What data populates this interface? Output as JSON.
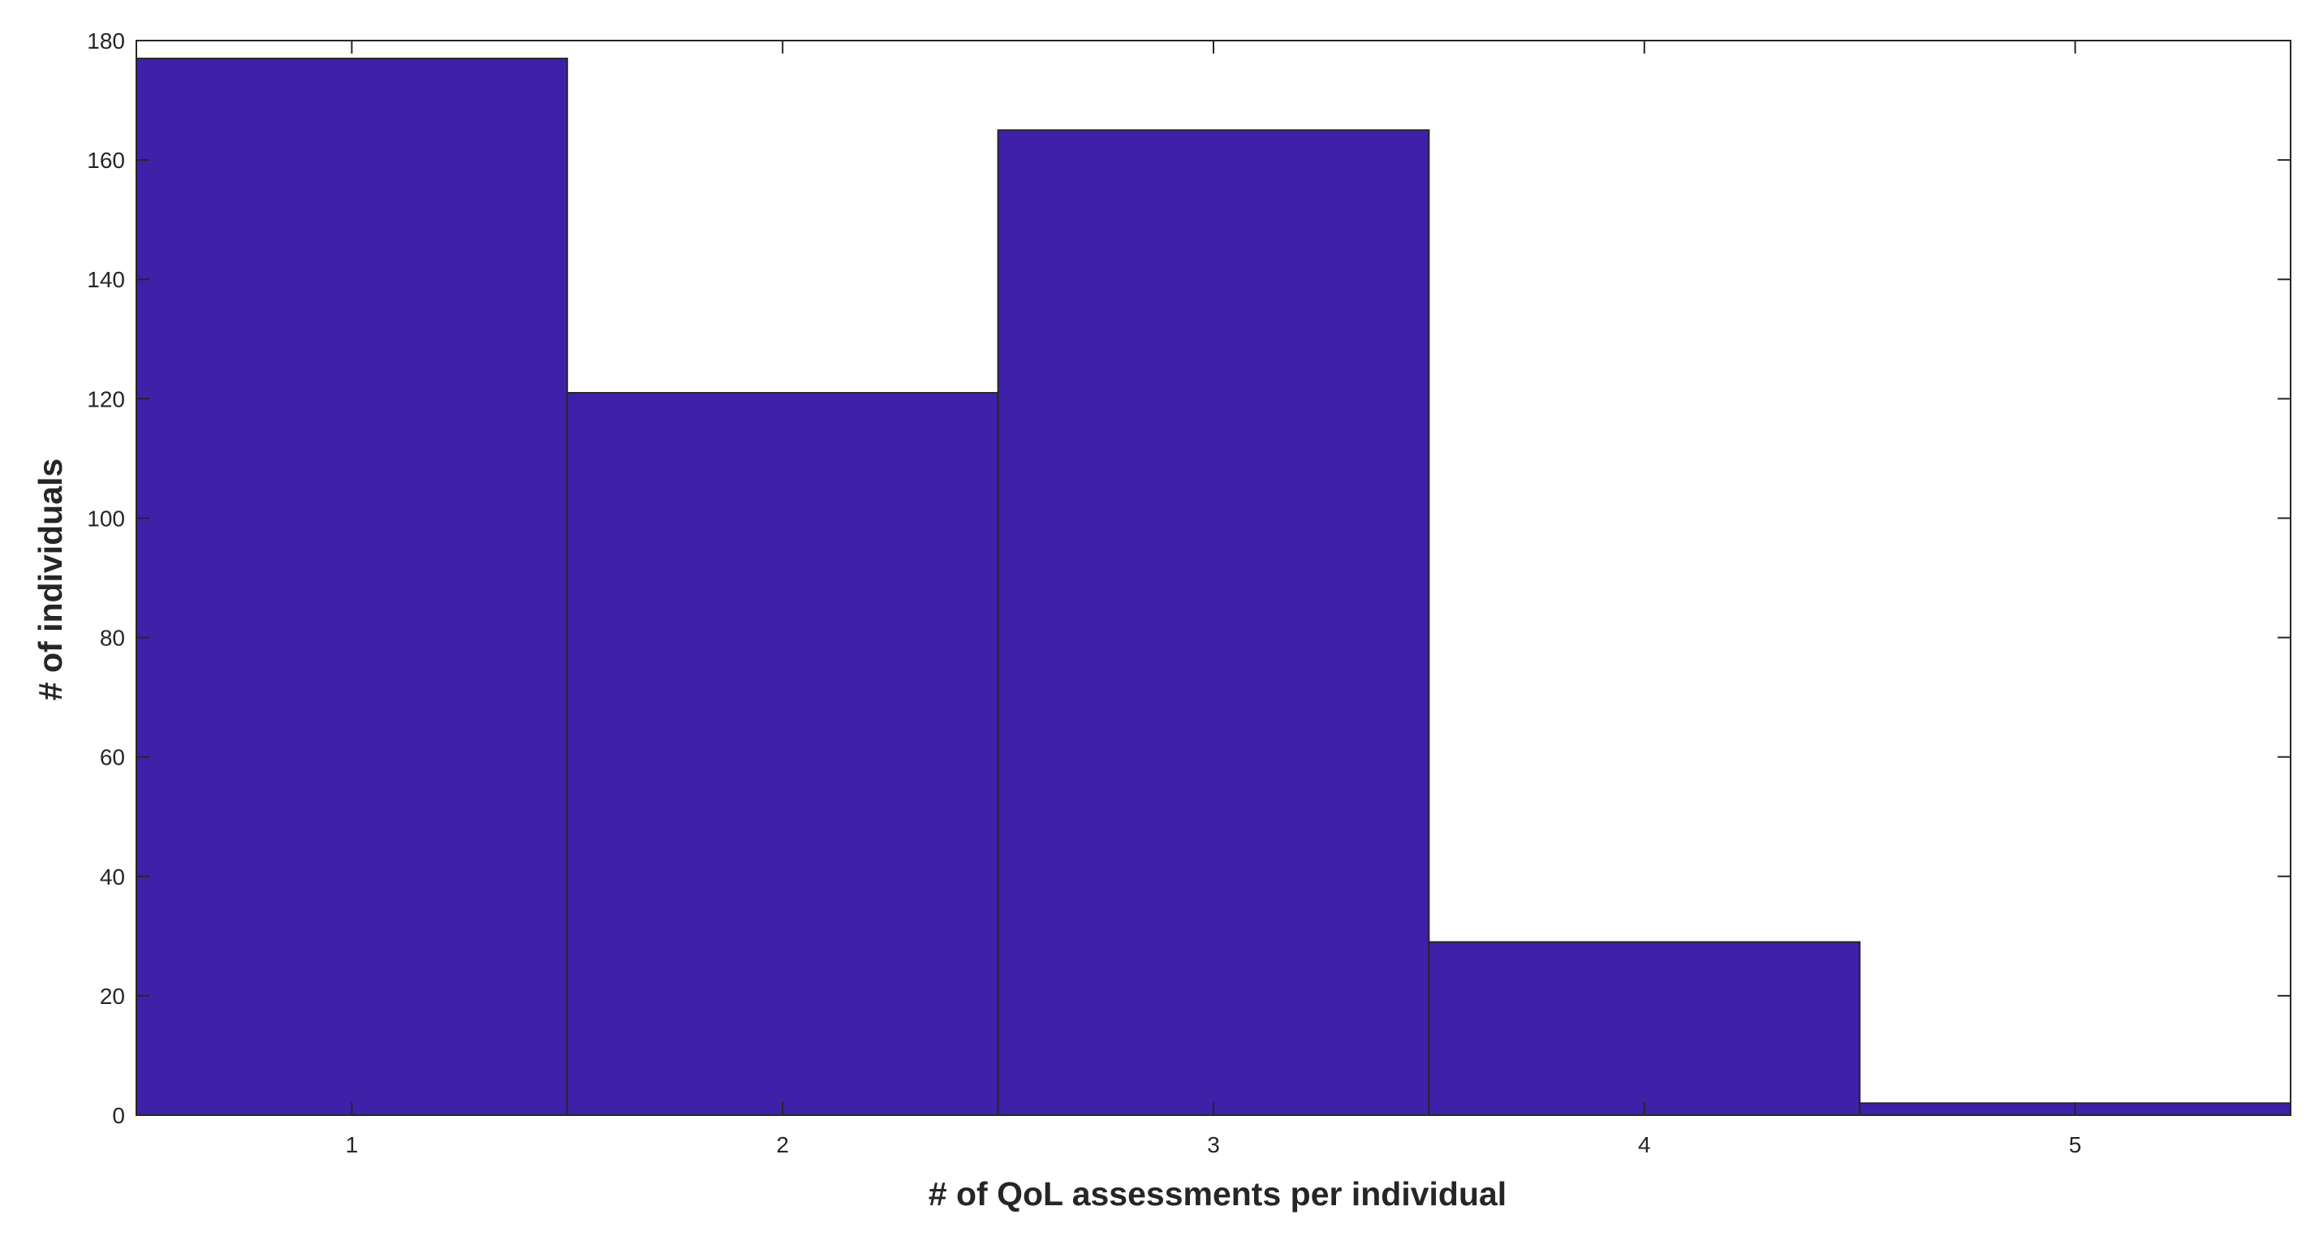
{
  "chart_data": {
    "type": "bar",
    "categories": [
      "1",
      "2",
      "3",
      "4",
      "5"
    ],
    "values": [
      177,
      121,
      165,
      29,
      2
    ],
    "xlabel": "# of QoL assessments per individual",
    "ylabel": "# of individuals",
    "xlim": [
      0.5,
      5.5
    ],
    "ylim": [
      0,
      180
    ],
    "yticks": [
      "0",
      "20",
      "40",
      "60",
      "80",
      "100",
      "120",
      "140",
      "160",
      "180"
    ],
    "xticks": [
      "1",
      "2",
      "3",
      "4",
      "5"
    ],
    "grid": false,
    "legend": "none",
    "colors": {
      "bar_fill": "#3f20a8",
      "bar_edge": "#262626",
      "axis": "#262626"
    }
  }
}
